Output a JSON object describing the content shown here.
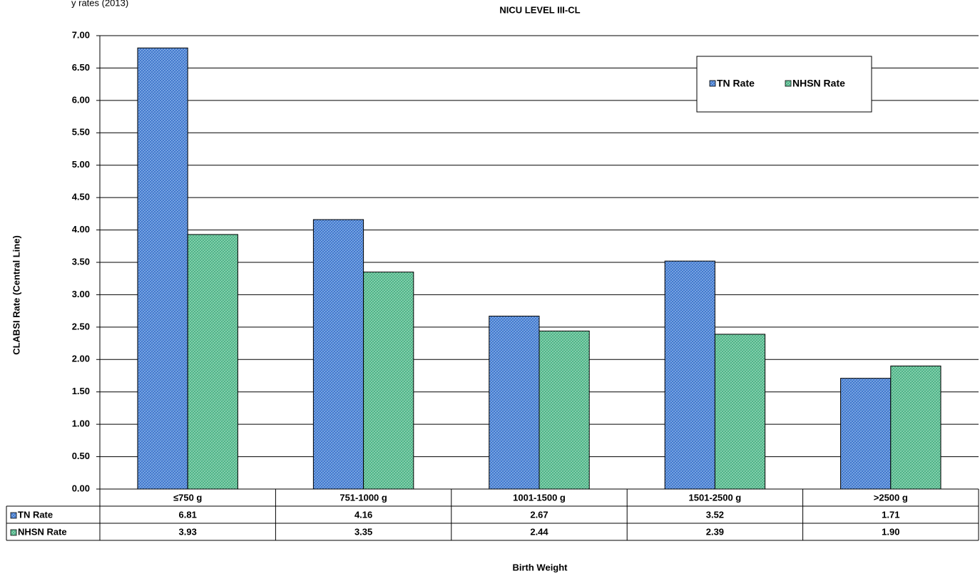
{
  "header": {
    "left_text": "y rates (2013)"
  },
  "chart_data": {
    "type": "bar",
    "title": "NICU LEVEL III-CL",
    "xlabel": "Birth Weight",
    "ylabel": "CLABSI Rate (Central Line)",
    "ylim": [
      0,
      7.0
    ],
    "ytick_step": 0.5,
    "ytick_labels": [
      "0.00",
      "0.50",
      "1.00",
      "1.50",
      "2.00",
      "2.50",
      "3.00",
      "3.50",
      "4.00",
      "4.50",
      "5.00",
      "5.50",
      "6.00",
      "6.50",
      "7.00"
    ],
    "grid": true,
    "legend_position": "top-right",
    "categories": [
      "≤750 g",
      "751-1000 g",
      "1001-1500 g",
      "1501-2500 g",
      ">2500 g"
    ],
    "series": [
      {
        "name": "TN Rate",
        "color": "#4f86d9",
        "values": [
          6.81,
          4.16,
          2.67,
          3.52,
          1.71
        ],
        "labels": [
          "6.81",
          "4.16",
          "2.67",
          "3.52",
          "1.71"
        ]
      },
      {
        "name": "NHSN Rate",
        "color": "#5cbf94",
        "values": [
          3.93,
          3.35,
          2.44,
          2.39,
          1.9
        ],
        "labels": [
          "3.93",
          "3.35",
          "2.44",
          "2.39",
          "1.90"
        ]
      }
    ]
  }
}
